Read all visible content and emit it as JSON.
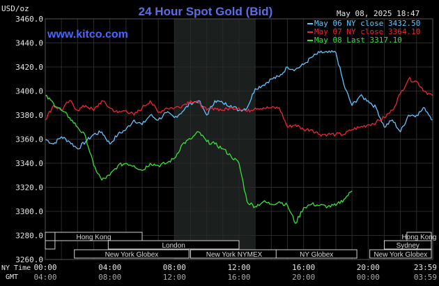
{
  "header": {
    "unit": "USD/oz",
    "title": "24 Hour Spot Gold (Bid)",
    "site": "www.kitco.com",
    "timestamp": "May 08, 2025 18:47"
  },
  "colors": {
    "background": "#000000",
    "title": "#5a6ee8",
    "site": "#4a66ff",
    "grid": "#2a2a2a",
    "shade": "#1b1f1d",
    "may06": "#62c4ff",
    "may07": "#ee2438",
    "may08": "#3ae03a",
    "session_border": "#d0d0d0",
    "session_text": "#d8d8d8",
    "axis_text": "#e8e8e8"
  },
  "legend": [
    {
      "label": "May 06 NY close 3432.50",
      "series": "may06"
    },
    {
      "label": "May 07 NY close 3364.10",
      "series": "may07"
    },
    {
      "label": "May 08 Last 3317.10",
      "series": "may08"
    }
  ],
  "sessions": [
    {
      "label": "Hong Kong",
      "row": 0
    },
    {
      "label": "",
      "row": 0
    },
    {
      "label": "",
      "row": 1
    },
    {
      "label": "London",
      "row": 1
    },
    {
      "label": "New York Globex",
      "row": 2
    },
    {
      "label": "New York NYMEX",
      "row": 2
    },
    {
      "label": "NY Globex",
      "row": 2
    },
    {
      "label": "Hong Kong",
      "row": 0
    },
    {
      "label": "Sydney",
      "row": 1
    },
    {
      "label": "New York Globex",
      "row": 2
    }
  ],
  "axis_labels": {
    "ny_time": "NY Time",
    "gmt": "GMT"
  },
  "chart_data": {
    "type": "line",
    "title": "24 Hour Spot Gold (Bid)",
    "ylabel": "USD/oz",
    "xlabel": "",
    "ylim": [
      3260,
      3460
    ],
    "y_ticks": [
      3260.0,
      3280.0,
      3300.0,
      3320.0,
      3340.0,
      3360.0,
      3380.0,
      3400.0,
      3420.0,
      3440.0,
      3460.0
    ],
    "y_tick_labels": [
      "3260.0",
      "3280.0",
      "3300.0",
      "3320.0",
      "3340.0",
      "3360.0",
      "3380.0",
      "3400.0",
      "3420.0",
      "3440.0",
      "3460.0"
    ],
    "xlim": [
      0,
      24
    ],
    "x_ticks": [
      0,
      4,
      8,
      12,
      16,
      20,
      24
    ],
    "x_tick_labels_ny": [
      "00:00",
      "04:00",
      "08:00",
      "12:00",
      "16:00",
      "20:00",
      "23:59"
    ],
    "x_tick_labels_gmt": [
      "04:00",
      "08:00",
      "12:00",
      "16:00",
      "20:00",
      "00:00",
      "03:59"
    ],
    "grid": true,
    "legend_position": "top-right",
    "shaded_range_hours": [
      8.0,
      13.0
    ],
    "series": [
      {
        "name": "May 06 NY close 3432.50",
        "key": "may06",
        "x": [
          0,
          0.5,
          1,
          1.5,
          2,
          2.5,
          3,
          3.5,
          4,
          4.5,
          5,
          5.5,
          6,
          6.5,
          7,
          7.5,
          8,
          8.5,
          9,
          9.5,
          10,
          10.5,
          11,
          11.5,
          12,
          12.5,
          13,
          13.5,
          14,
          14.5,
          15,
          15.5,
          16,
          16.5,
          17,
          17.5,
          18,
          18.5,
          19,
          19.5,
          20,
          20.5,
          21,
          21.5,
          22,
          22.5,
          23,
          23.5,
          24
        ],
        "y": [
          3360,
          3356,
          3362,
          3358,
          3352,
          3358,
          3364,
          3366,
          3356,
          3364,
          3368,
          3376,
          3372,
          3380,
          3376,
          3382,
          3378,
          3383,
          3390,
          3392,
          3380,
          3392,
          3390,
          3388,
          3384,
          3386,
          3402,
          3405,
          3410,
          3412,
          3420,
          3418,
          3422,
          3428,
          3432,
          3432,
          3432,
          3405,
          3388,
          3396,
          3392,
          3386,
          3370,
          3376,
          3366,
          3380,
          3380,
          3386,
          3376
        ]
      },
      {
        "name": "May 07 NY close 3364.10",
        "key": "may07",
        "x": [
          0,
          0.5,
          1,
          1.5,
          2,
          2.5,
          3,
          3.5,
          4,
          4.5,
          5,
          5.5,
          6,
          6.5,
          7,
          7.5,
          8,
          8.5,
          9,
          9.5,
          10,
          10.5,
          11,
          11.5,
          12,
          12.5,
          13,
          13.5,
          14,
          14.5,
          15,
          15.5,
          16,
          16.5,
          17,
          17.5,
          18,
          18.5,
          19,
          19.5,
          20,
          20.5,
          21,
          21.5,
          22,
          22.5,
          23,
          23.5,
          24
        ],
        "y": [
          3376,
          3388,
          3384,
          3392,
          3384,
          3388,
          3384,
          3392,
          3386,
          3382,
          3384,
          3380,
          3386,
          3392,
          3382,
          3386,
          3386,
          3388,
          3392,
          3390,
          3384,
          3386,
          3384,
          3386,
          3386,
          3383,
          3386,
          3386,
          3386,
          3386,
          3370,
          3372,
          3368,
          3368,
          3364,
          3364,
          3364,
          3364,
          3368,
          3370,
          3372,
          3374,
          3378,
          3384,
          3398,
          3410,
          3408,
          3400,
          3396
        ]
      },
      {
        "name": "May 08 Last 3317.10",
        "key": "may08",
        "x": [
          0,
          0.5,
          1,
          1.5,
          2,
          2.5,
          3,
          3.5,
          4,
          4.5,
          5,
          5.5,
          6,
          6.5,
          7,
          7.5,
          8,
          8.5,
          9,
          9.5,
          10,
          10.5,
          11,
          11.5,
          12,
          12.5,
          13,
          13.5,
          14,
          14.5,
          15,
          15.5,
          16,
          16.5,
          17,
          17.5,
          18,
          18.5,
          19
        ],
        "y": [
          3396,
          3390,
          3384,
          3378,
          3370,
          3362,
          3338,
          3326,
          3330,
          3338,
          3340,
          3338,
          3334,
          3340,
          3338,
          3340,
          3344,
          3356,
          3360,
          3366,
          3358,
          3356,
          3352,
          3346,
          3340,
          3308,
          3304,
          3308,
          3306,
          3308,
          3305,
          3290,
          3303,
          3306,
          3305,
          3304,
          3305,
          3310,
          3317
        ]
      }
    ]
  }
}
